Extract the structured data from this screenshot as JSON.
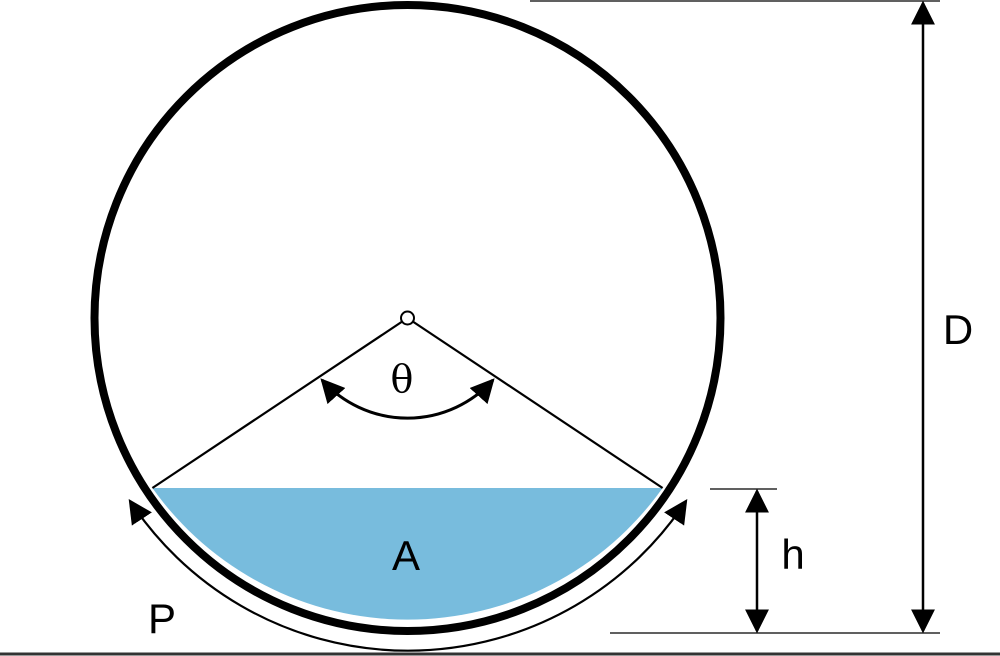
{
  "labels": {
    "theta": "θ",
    "area": "A",
    "perimeter": "P",
    "height": "h",
    "diameter": "D"
  },
  "colors": {
    "fill": "#78BCDD",
    "stroke": "#000000",
    "background": "#FFFFFF"
  }
}
